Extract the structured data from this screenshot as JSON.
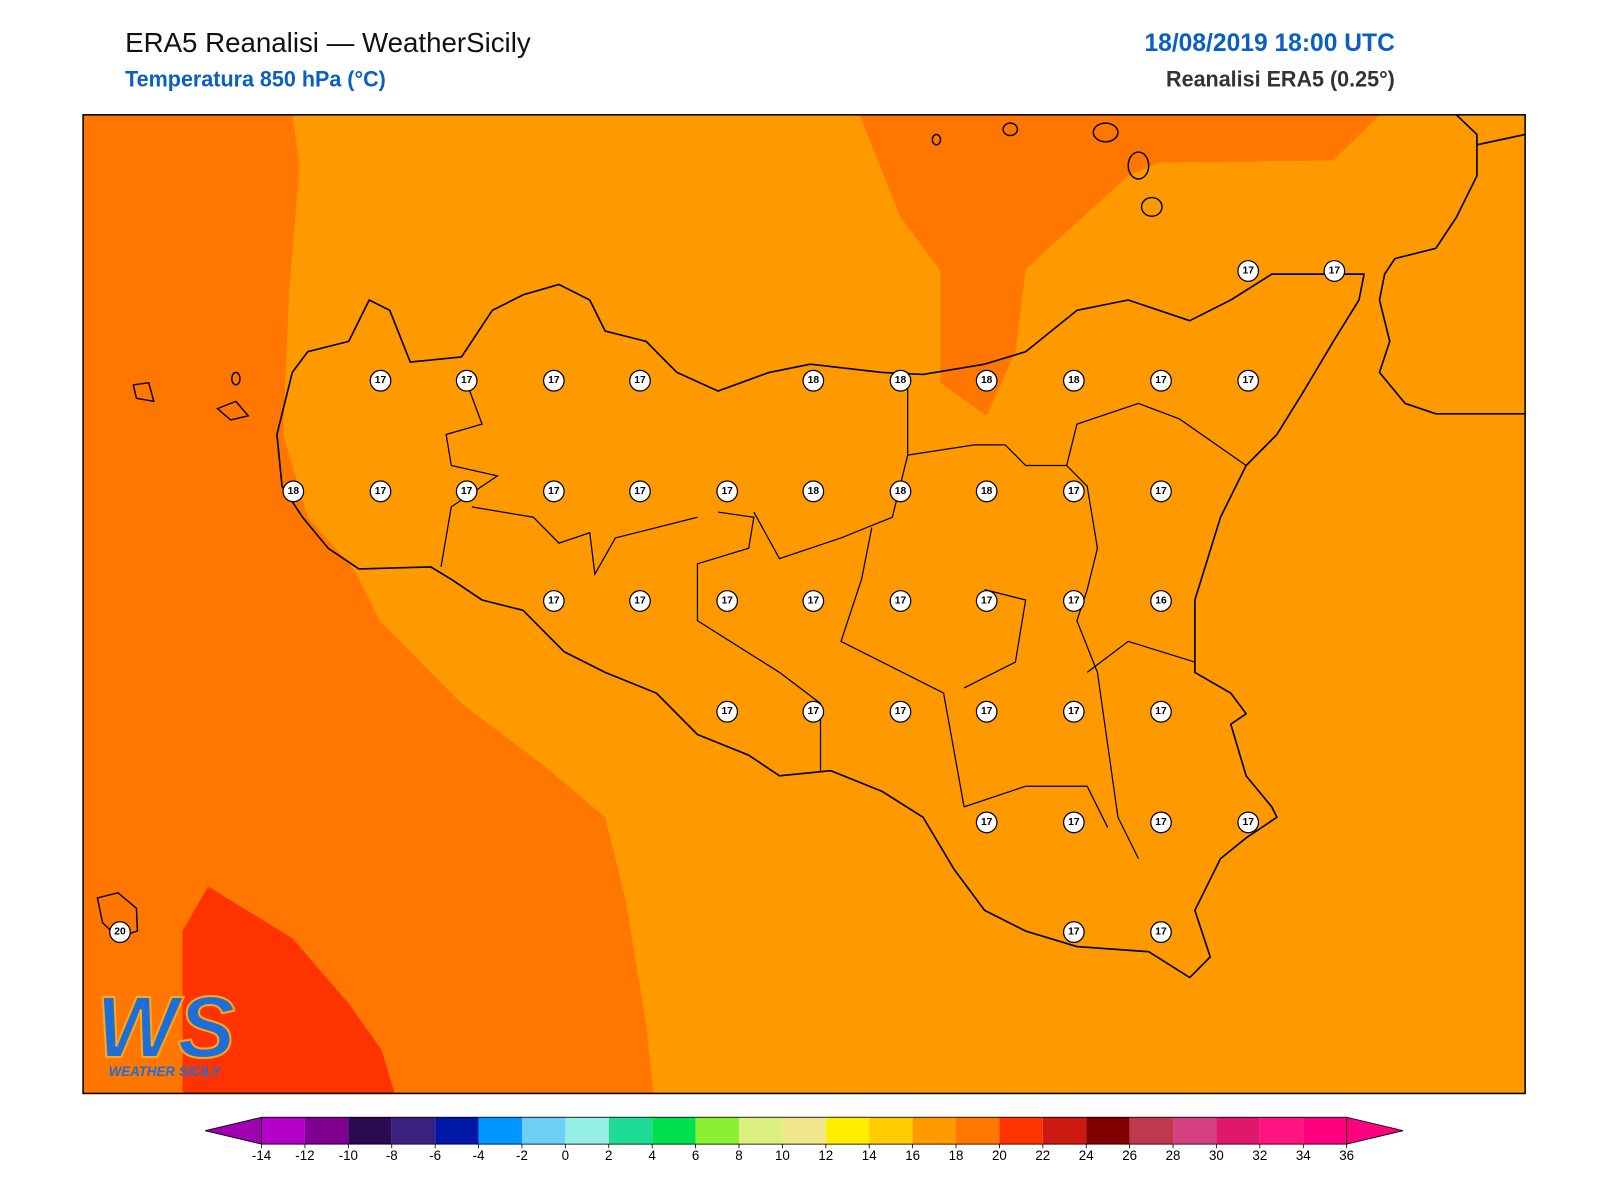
{
  "header": {
    "title": "ERA5 Reanalisi — WeatherSicily",
    "subtitle": "Temperatura 850 hPa (°C)",
    "datetime": "18/08/2019 18:00 UTC",
    "source": "Reanalisi ERA5 (0.25°)"
  },
  "stations": [
    {
      "value": 17
    },
    {
      "value": 17
    },
    {
      "value": 17
    },
    {
      "value": 17
    },
    {
      "value": 17
    },
    {
      "value": 17
    },
    {
      "value": 18
    },
    {
      "value": 18
    },
    {
      "value": 18
    },
    {
      "value": 18
    },
    {
      "value": 17
    },
    {
      "value": 17
    },
    {
      "value": 18
    },
    {
      "value": 17
    },
    {
      "value": 17
    },
    {
      "value": 17
    },
    {
      "value": 17
    },
    {
      "value": 17
    },
    {
      "value": 18
    },
    {
      "value": 18
    },
    {
      "value": 18
    },
    {
      "value": 17
    },
    {
      "value": 17
    },
    {
      "value": 17
    },
    {
      "value": 17
    },
    {
      "value": 17
    },
    {
      "value": 17
    },
    {
      "value": 17
    },
    {
      "value": 17
    },
    {
      "value": 17
    },
    {
      "value": 16
    },
    {
      "value": 17
    },
    {
      "value": 17
    },
    {
      "value": 17
    },
    {
      "value": 17
    },
    {
      "value": 17
    },
    {
      "value": 17
    },
    {
      "value": 17
    },
    {
      "value": 17
    },
    {
      "value": 17
    },
    {
      "value": 17
    },
    {
      "value": 20
    },
    {
      "value": 17
    },
    {
      "value": 17
    }
  ],
  "colorbar": {
    "ticks": [
      -14,
      -12,
      -10,
      -8,
      -6,
      -4,
      -2,
      0,
      2,
      4,
      6,
      8,
      10,
      12,
      14,
      16,
      18,
      20,
      22,
      24,
      26,
      28,
      30,
      32,
      34,
      36
    ],
    "colors": [
      "#b400c8",
      "#800090",
      "#2a0a50",
      "#3c2080",
      "#0018a8",
      "#0096ff",
      "#6ecff6",
      "#96f0e6",
      "#1edc96",
      "#00e050",
      "#8cf032",
      "#dcf080",
      "#f0e68c",
      "#ffee00",
      "#ffcc00",
      "#ff9900",
      "#ff7700",
      "#ff3300",
      "#cc1a10",
      "#800000",
      "#c0384c",
      "#d44080",
      "#e0186c",
      "#ff1480",
      "#ff0080"
    ],
    "under_color": "#a000b0",
    "over_color": "#ff0080"
  },
  "logo": {
    "mark": "WS",
    "text": "WEATHER SICILY"
  }
}
